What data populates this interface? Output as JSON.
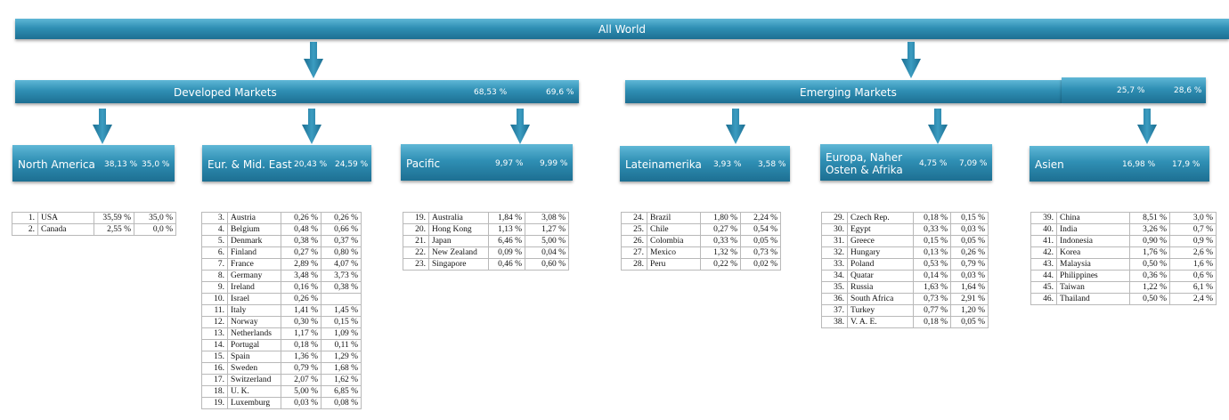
{
  "top": {
    "title": "All World"
  },
  "developed": {
    "title": "Developed Markets",
    "pct1": "68,53 %",
    "pct2": "69,6 %"
  },
  "emerging": {
    "title": "Emerging Markets",
    "pct1": "25,7 %",
    "pct2": "28,6 %"
  },
  "regions": [
    {
      "title": "North America",
      "pct1": "38,13 %",
      "pct2": "35,0 %",
      "rows": [
        [
          "1.",
          "USA",
          "35,59 %",
          "35,0 %"
        ],
        [
          "2.",
          "Canada",
          "2,55 %",
          "0,0 %"
        ]
      ]
    },
    {
      "title": "Eur. & Mid. East",
      "pct1": "20,43 %",
      "pct2": "24,59 %",
      "rows": [
        [
          "3.",
          "Austria",
          "0,26 %",
          "0,26 %"
        ],
        [
          "4.",
          "Belgium",
          "0,48 %",
          "0,66 %"
        ],
        [
          "5.",
          "Denmark",
          "0,38 %",
          "0,37 %"
        ],
        [
          "6.",
          "Finland",
          "0,27 %",
          "0,80 %"
        ],
        [
          "7.",
          "France",
          "2,89 %",
          "4,07 %"
        ],
        [
          "8.",
          "Germany",
          "3,48 %",
          "3,73 %"
        ],
        [
          "9.",
          "Ireland",
          "0,16 %",
          "0,38 %"
        ],
        [
          "10.",
          "Israel",
          "0,26 %",
          ""
        ],
        [
          "11.",
          "Italy",
          "1,41 %",
          "1,45 %"
        ],
        [
          "12.",
          "Norway",
          "0,30 %",
          "0,15 %"
        ],
        [
          "13.",
          "Netherlands",
          "1,17 %",
          "1,09 %"
        ],
        [
          "14.",
          "Portugal",
          "0,18 %",
          "0,11 %"
        ],
        [
          "15.",
          "Spain",
          "1,36 %",
          "1,29 %"
        ],
        [
          "16.",
          "Sweden",
          "0,79 %",
          "1,68 %"
        ],
        [
          "17.",
          "Switzerland",
          "2,07 %",
          "1,62 %"
        ],
        [
          "18.",
          "U. K.",
          "5,00 %",
          "6,85 %"
        ],
        [
          "19.",
          "Luxemburg",
          "0,03 %",
          "0,08 %"
        ]
      ]
    },
    {
      "title": "Pacific",
      "pct1": "9,97 %",
      "pct2": "9,99 %",
      "rows": [
        [
          "19.",
          "Australia",
          "1,84 %",
          "3,08 %"
        ],
        [
          "20.",
          "Hong Kong",
          "1,13 %",
          "1,27 %"
        ],
        [
          "21.",
          "Japan",
          "6,46 %",
          "5,00 %"
        ],
        [
          "22.",
          "New Zealand",
          "0,09 %",
          "0,04 %"
        ],
        [
          "23.",
          "Singapore",
          "0,46 %",
          "0,60 %"
        ]
      ]
    },
    {
      "title": "Lateinamerika",
      "pct1": "3,93 %",
      "pct2": "3,58 %",
      "rows": [
        [
          "24.",
          "Brazil",
          "1,80 %",
          "2,24 %"
        ],
        [
          "25.",
          "Chile",
          "0,27 %",
          "0,54 %"
        ],
        [
          "26.",
          "Colombia",
          "0,33 %",
          "0,05 %"
        ],
        [
          "27.",
          "Mexico",
          "1,32 %",
          "0,73 %"
        ],
        [
          "28.",
          "Peru",
          "0,22 %",
          "0,02 %"
        ]
      ]
    },
    {
      "title": "Europa, Naher Osten & Afrika",
      "pct1": "4,75 %",
      "pct2": "7,09 %",
      "rows": [
        [
          "29.",
          "Czech Rep.",
          "0,18 %",
          "0,15 %"
        ],
        [
          "30.",
          "Egypt",
          "0,33 %",
          "0,03 %"
        ],
        [
          "31.",
          "Greece",
          "0,15 %",
          "0,05 %"
        ],
        [
          "32.",
          "Hungary",
          "0,13 %",
          "0,26 %"
        ],
        [
          "33.",
          "Poland",
          "0,53 %",
          "0,79 %"
        ],
        [
          "34.",
          "Quatar",
          "0,14 %",
          "0,03 %"
        ],
        [
          "35.",
          "Russia",
          "1,63 %",
          "1,64 %"
        ],
        [
          "36.",
          "South Africa",
          "0,73 %",
          "2,91 %"
        ],
        [
          "37.",
          "Turkey",
          "0,77 %",
          "1,20 %"
        ],
        [
          "38.",
          "V. A. E.",
          "0,18 %",
          "0,05 %"
        ]
      ]
    },
    {
      "title": "Asien",
      "pct1": "16,98 %",
      "pct2": "17,9 %",
      "rows": [
        [
          "39.",
          "China",
          "8,51 %",
          "3,0 %"
        ],
        [
          "40.",
          "India",
          "3,26 %",
          "0,7 %"
        ],
        [
          "41.",
          "Indonesia",
          "0,90 %",
          "0,9 %"
        ],
        [
          "42.",
          "Korea",
          "1,76 %",
          "2,6 %"
        ],
        [
          "43.",
          "Malaysia",
          "0,50 %",
          "1,6 %"
        ],
        [
          "44.",
          "Philippines",
          "0,36 %",
          "0,6 %"
        ],
        [
          "45.",
          "Taiwan",
          "1,22 %",
          "6,1 %"
        ],
        [
          "46.",
          "Thailand",
          "0,50 %",
          "2,4 %"
        ]
      ]
    }
  ]
}
